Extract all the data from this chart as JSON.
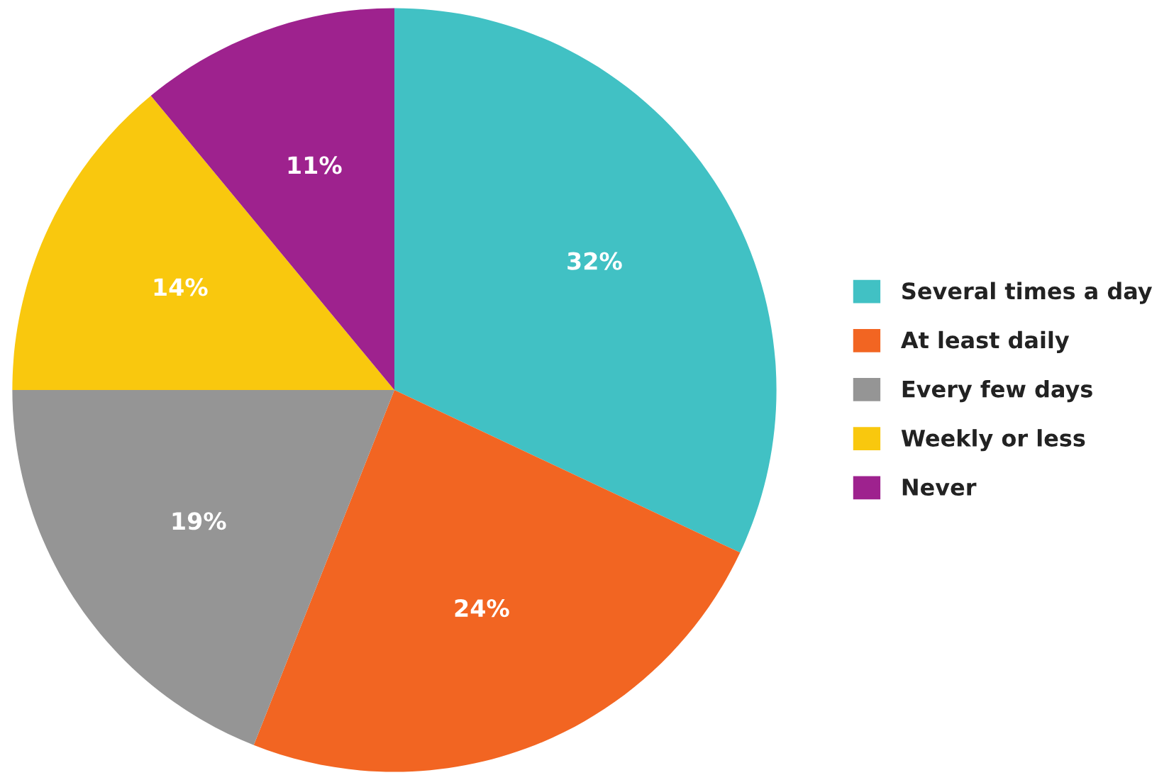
{
  "chart_data": {
    "type": "pie",
    "categories": [
      "Several times a day",
      "At least daily",
      "Every few days",
      "Weekly or less",
      "Never"
    ],
    "values": [
      32,
      24,
      19,
      14,
      11
    ],
    "colors": [
      "#41c1c4",
      "#f26522",
      "#959595",
      "#f9c80e",
      "#9e228e"
    ],
    "value_labels": [
      "32%",
      "24%",
      "19%",
      "14%",
      "11%"
    ],
    "legend": "right"
  }
}
